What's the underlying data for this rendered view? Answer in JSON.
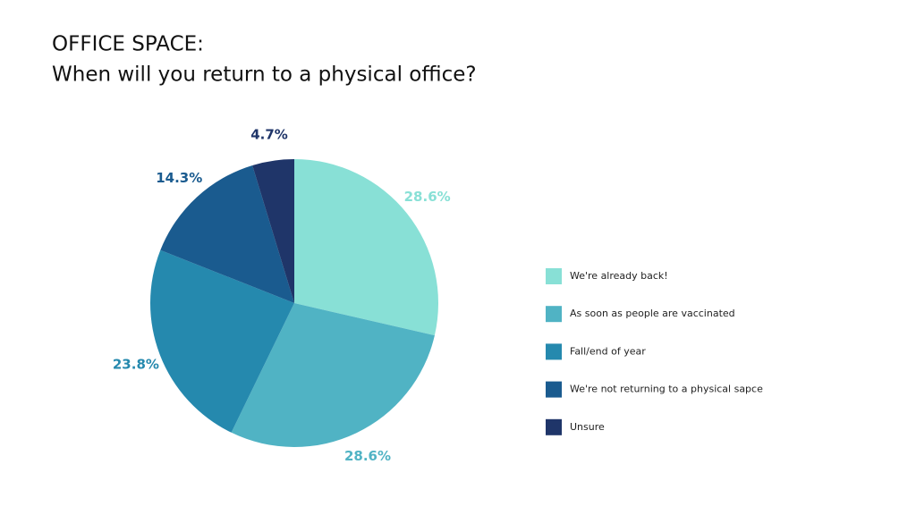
{
  "chart_data": {
    "type": "pie",
    "title": "OFFICE SPACE:",
    "subtitle": "When will you return to a physical office?",
    "categories": [
      "We're already back!",
      "As soon as people are vaccinated",
      "Fall/end of year",
      "We're not returning to a physical sapce",
      "Unsure"
    ],
    "values": [
      28.6,
      28.6,
      23.8,
      14.3,
      4.7
    ],
    "value_labels": [
      "28.6%",
      "28.6%",
      "23.8%",
      "14.3%",
      "4.7%"
    ],
    "colors": [
      "#88e0d6",
      "#50b3c4",
      "#2589ae",
      "#1a5b8f",
      "#1f3569"
    ],
    "legend": "right"
  }
}
